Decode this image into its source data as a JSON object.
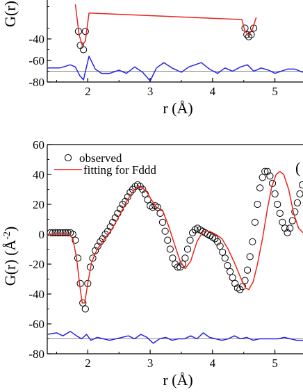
{
  "chart_data": [
    {
      "type": "line",
      "panel": "top (cropped)",
      "ylabel": "G(r)",
      "xlabel": "r (Å)",
      "xlabel_main": "r (",
      "xlabel_unit": "Å",
      "xlabel_close": ")",
      "xlim": [
        1.35,
        5.45
      ],
      "ylim": [
        -80,
        0
      ],
      "xticks": [
        2,
        3,
        4,
        5
      ],
      "yticks": [
        -80,
        -60,
        -40
      ],
      "baseline": -70,
      "series": [
        {
          "role": "observed",
          "marker": "open-circle",
          "x": [
            1.85,
            1.88,
            1.93,
            1.96,
            4.52,
            4.55,
            4.58,
            4.62,
            4.66
          ],
          "y": [
            -33,
            -46,
            -50,
            -33,
            -30,
            -36,
            -38,
            -36,
            -30
          ]
        },
        {
          "role": "fit",
          "color": "#e8241c",
          "x": [
            1.8,
            1.86,
            1.91,
            1.96,
            2.02,
            4.47,
            4.52,
            4.58,
            4.64,
            4.7
          ],
          "y": [
            -8,
            -36,
            -46,
            -42,
            -16,
            -22,
            -33,
            -36,
            -31,
            -20
          ]
        },
        {
          "role": "difference",
          "color": "#2323e6",
          "x": [
            1.35,
            1.55,
            1.72,
            1.8,
            1.87,
            1.93,
            2.02,
            2.12,
            2.22,
            2.35,
            2.5,
            2.62,
            2.75,
            2.88,
            3.0,
            3.1,
            3.22,
            3.35,
            3.5,
            3.62,
            3.72,
            3.82,
            3.95,
            4.08,
            4.2,
            4.32,
            4.45,
            4.56,
            4.66,
            4.78,
            4.9,
            5.0,
            5.1,
            5.2,
            5.32,
            5.45
          ],
          "y": [
            -67,
            -67,
            -64,
            -66,
            -74,
            -78,
            -56,
            -68,
            -72,
            -72,
            -69,
            -72,
            -66,
            -71,
            -79,
            -67,
            -62,
            -67,
            -71,
            -66,
            -64,
            -62,
            -68,
            -72,
            -67,
            -70,
            -66,
            -64,
            -70,
            -67,
            -69,
            -72,
            -70,
            -68,
            -68,
            -71
          ]
        }
      ]
    },
    {
      "type": "line",
      "panel": "bottom",
      "ylabel": "G(r) (Å",
      "ylabel_sup": "-2",
      "ylabel_close": ")",
      "xlabel": "r (Å)",
      "xlabel_main": "r (",
      "xlabel_unit": "Å",
      "xlabel_close": ")",
      "xlim": [
        1.35,
        5.45
      ],
      "ylim": [
        -80,
        60
      ],
      "xticks": [
        2,
        3,
        4,
        5
      ],
      "yticks": [
        -80,
        -60,
        -40,
        -20,
        0,
        20,
        40,
        60
      ],
      "baseline": -70,
      "panel_letter": "(",
      "legend": {
        "position": "top-left",
        "observed_label": "observed",
        "fit_label": "fitting for Fddd"
      },
      "series": [
        {
          "name": "observed",
          "marker": "open-circle",
          "x": [
            1.4,
            1.44,
            1.48,
            1.52,
            1.56,
            1.6,
            1.64,
            1.68,
            1.72,
            1.76,
            1.8,
            1.84,
            1.88,
            1.92,
            1.96,
            2.0,
            2.04,
            2.08,
            2.12,
            2.16,
            2.2,
            2.24,
            2.28,
            2.32,
            2.36,
            2.4,
            2.44,
            2.48,
            2.52,
            2.56,
            2.6,
            2.64,
            2.68,
            2.72,
            2.76,
            2.8,
            2.84,
            2.88,
            2.92,
            2.96,
            3.0,
            3.04,
            3.08,
            3.12,
            3.16,
            3.2,
            3.24,
            3.28,
            3.32,
            3.36,
            3.4,
            3.44,
            3.48,
            3.52,
            3.56,
            3.6,
            3.64,
            3.68,
            3.72,
            3.76,
            3.8,
            3.84,
            3.88,
            3.92,
            3.96,
            4.0,
            4.04,
            4.08,
            4.12,
            4.16,
            4.2,
            4.24,
            4.28,
            4.32,
            4.36,
            4.4,
            4.44,
            4.48,
            4.52,
            4.56,
            4.6,
            4.64,
            4.68,
            4.72,
            4.76,
            4.8,
            4.84,
            4.88,
            4.92,
            4.96,
            5.0,
            5.04,
            5.08,
            5.12,
            5.16,
            5.2,
            5.24,
            5.28,
            5.32,
            5.36,
            5.4,
            5.44
          ],
          "y": [
            1,
            1,
            1,
            1,
            1,
            1,
            1,
            1,
            1,
            0,
            -4,
            -16,
            -33,
            -46,
            -50,
            -33,
            -22,
            -16,
            -11,
            -8,
            -5,
            -3,
            0,
            2,
            5,
            8,
            11,
            14,
            17,
            20,
            22,
            25,
            28,
            30,
            32,
            33,
            32,
            30,
            27,
            23,
            19,
            18,
            19,
            18,
            14,
            8,
            2,
            -4,
            -10,
            -16,
            -20,
            -22,
            -22,
            -20,
            -16,
            -10,
            -4,
            1,
            3,
            4,
            3,
            2,
            1,
            0,
            -1,
            -2,
            -3,
            -5,
            -8,
            -12,
            -16,
            -21,
            -25,
            -29,
            -33,
            -36,
            -37,
            -35,
            -31,
            -24,
            -15,
            -5,
            8,
            20,
            31,
            38,
            42,
            42,
            39,
            34,
            27,
            20,
            14,
            8,
            4,
            1,
            4,
            9,
            15,
            21,
            27,
            33
          ],
          "color": "#000000"
        },
        {
          "name": "fitting for Fddd",
          "color": "#e8241c",
          "x": [
            1.35,
            1.7,
            1.76,
            1.82,
            1.87,
            1.91,
            1.95,
            2.0,
            2.06,
            2.14,
            2.25,
            2.35,
            2.45,
            2.55,
            2.65,
            2.75,
            2.82,
            2.88,
            2.95,
            3.02,
            3.1,
            3.2,
            3.3,
            3.4,
            3.48,
            3.56,
            3.65,
            3.75,
            3.85,
            3.95,
            4.05,
            4.15,
            4.25,
            4.35,
            4.45,
            4.53,
            4.58,
            4.65,
            4.72,
            4.8,
            4.88,
            4.95,
            5.02,
            5.08,
            5.14,
            5.22,
            5.3,
            5.38,
            5.45
          ],
          "y": [
            0,
            0,
            -3,
            -16,
            -34,
            -46,
            -46,
            -33,
            -19,
            -11,
            -4,
            1,
            8,
            16,
            24,
            30,
            32,
            31,
            28,
            23,
            18,
            16,
            5,
            -8,
            -18,
            -23,
            -18,
            -5,
            2,
            2,
            0,
            -3,
            -10,
            -19,
            -29,
            -36,
            -37,
            -32,
            -20,
            -3,
            17,
            32,
            40,
            42,
            40,
            30,
            14,
            4,
            1
          ]
        },
        {
          "name": "difference",
          "color": "#2323e6",
          "x": [
            1.35,
            1.5,
            1.6,
            1.72,
            1.82,
            1.9,
            1.98,
            2.05,
            2.15,
            2.25,
            2.35,
            2.45,
            2.55,
            2.65,
            2.75,
            2.85,
            2.95,
            3.05,
            3.15,
            3.25,
            3.35,
            3.45,
            3.55,
            3.65,
            3.75,
            3.85,
            3.95,
            4.05,
            4.15,
            4.25,
            4.35,
            4.45,
            4.55,
            4.65,
            4.75,
            4.85,
            4.95,
            5.05,
            5.15,
            5.25,
            5.35,
            5.45
          ],
          "y": [
            -67,
            -66,
            -68,
            -65,
            -68,
            -70,
            -67,
            -71,
            -69,
            -70,
            -71,
            -70,
            -69,
            -68,
            -70,
            -67,
            -69,
            -73,
            -70,
            -69,
            -71,
            -70,
            -70,
            -68,
            -70,
            -66,
            -69,
            -70,
            -71,
            -70,
            -68,
            -70,
            -69,
            -71,
            -70,
            -70,
            -70,
            -70,
            -69,
            -70,
            -71,
            -71
          ]
        }
      ]
    }
  ]
}
